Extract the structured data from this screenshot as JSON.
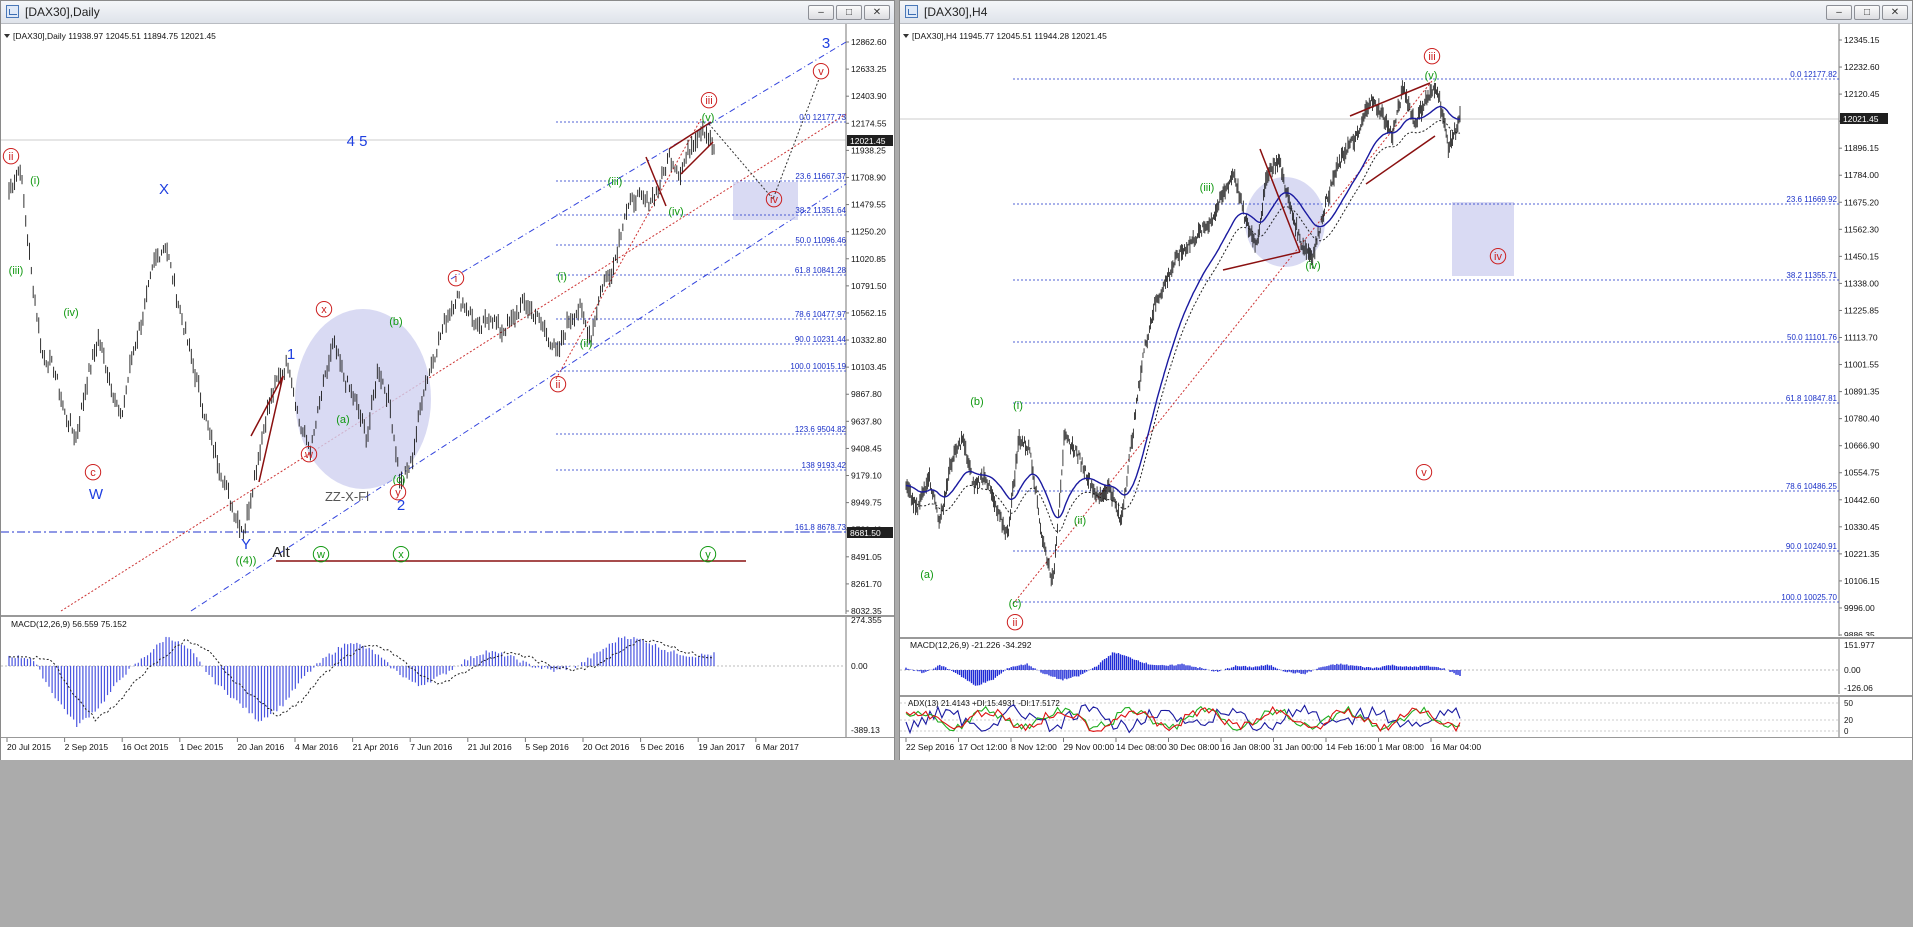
{
  "windows": [
    {
      "title": "[DAX30],Daily",
      "header": "[DAX30],Daily  11938.97 12045.51 11894.75 12021.45",
      "current_price": "12021.45",
      "y_ticks": [
        "12862.60",
        "12633.25",
        "12403.90",
        "12174.55",
        "11938.25",
        "11708.90",
        "11479.55",
        "11250.20",
        "11020.85",
        "10791.50",
        "10562.15",
        "10332.80",
        "10103.45",
        "9867.80",
        "9637.80",
        "9408.45",
        "9179.10",
        "8949.75",
        "8720.40",
        "8491.05",
        "8261.70",
        "8032.35"
      ],
      "current_marker_low": "8681.50",
      "x_ticks": [
        "20 Jul 2015",
        "2 Sep 2015",
        "16 Oct 2015",
        "1 Dec 2015",
        "20 Jan 2016",
        "4 Mar 2016",
        "21 Apr 2016",
        "7 Jun 2016",
        "21 Jul 2016",
        "5 Sep 2016",
        "20 Oct 2016",
        "5 Dec 2016",
        "19 Jan 2017",
        "6 Mar 2017"
      ],
      "fib_levels": [
        "0.0 12177.73",
        "23.6 11667.37",
        "38.2 11351.64",
        "50.0 11096.46",
        "61.8 10841.28",
        "78.6 10477.97",
        "90.0 10231.44",
        "100.0 10015.19",
        "123.6 9504.82",
        "138 9193.42",
        "161.8 8678.73"
      ],
      "wave_labels": [
        "ii",
        "i",
        "iii",
        "iv",
        "c",
        "W",
        "X",
        "Y",
        "(4)",
        "1",
        "x",
        "w",
        "a",
        "b",
        "c",
        "y",
        "2",
        "i",
        "ii",
        "i",
        "ii",
        "iii",
        "iv",
        "v",
        "iii",
        "iv",
        "v",
        "3",
        "4 5",
        "ZZ-X-Fl",
        "Alt",
        "w",
        "x",
        "y"
      ],
      "macd_label": "MACD(12,26,9) 56.559 75.152",
      "macd_ticks": [
        "274.355",
        "0.00",
        "-389.13"
      ]
    },
    {
      "title": "[DAX30],H4",
      "header": "[DAX30],H4  11945.77 12045.51 11944.28 12021.45",
      "current_price": "12021.45",
      "y_ticks": [
        "12345.15",
        "12232.60",
        "12120.45",
        "12008.30",
        "11896.15",
        "11784.00",
        "11675.20",
        "11562.30",
        "11450.15",
        "11338.00",
        "11225.85",
        "11113.70",
        "11001.55",
        "10891.35",
        "10780.40",
        "10666.90",
        "10554.75",
        "10442.60",
        "10330.45",
        "10221.35",
        "10106.15",
        "9996.00",
        "9886.35"
      ],
      "x_ticks": [
        "22 Sep 2016",
        "17 Oct 12:00",
        "8 Nov 12:00",
        "29 Nov 00:00",
        "14 Dec 08:00",
        "30 Dec 08:00",
        "16 Jan 08:00",
        "31 Jan 00:00",
        "14 Feb 16:00",
        "1 Mar 08:00",
        "16 Mar 04:00"
      ],
      "fib_levels": [
        "0.0 12177.82",
        "23.6 11669.92",
        "38.2 11355.71",
        "50.0 11101.76",
        "61.8 10847.81",
        "78.6 10486.25",
        "90.0 10240.91",
        "100.0 10025.70"
      ],
      "wave_labels": [
        "a",
        "b",
        "c",
        "ii",
        "i",
        "ii",
        "iii",
        "iv",
        "v",
        "iii",
        "iv",
        "v"
      ],
      "macd_label": "MACD(12,26,9) -21.226 -34.292",
      "macd_ticks": [
        "151.977",
        "0.00",
        "-126.06"
      ],
      "adx_label": "ADX(13) 21.4143 +DI:15.4931 -DI:17.5172",
      "adx_ticks": [
        "50",
        "20",
        "0"
      ]
    }
  ],
  "colors": {
    "wave_red": "#cc1f1f",
    "wave_green": "#119911",
    "wave_blue": "#1f3fe0",
    "fib": "#1a30c8",
    "zone": "#cfd1f0",
    "trend": "#8a1010"
  },
  "chart_data": [
    {
      "type": "line",
      "title": "[DAX30],Daily",
      "x": [
        "20 Jul 2015",
        "2 Sep 2015",
        "16 Oct 2015",
        "1 Dec 2015",
        "20 Jan 2016",
        "4 Mar 2016",
        "21 Apr 2016",
        "7 Jun 2016",
        "21 Jul 2016",
        "5 Sep 2016",
        "20 Oct 2016",
        "5 Dec 2016",
        "19 Jan 2017",
        "6 Mar 2017"
      ],
      "series": [
        {
          "values": [
            11600,
            10100,
            9900,
            11100,
            9600,
            9500,
            10200,
            9600,
            10150,
            10600,
            10500,
            10900,
            11550,
            11950
          ]
        }
      ],
      "ylim": [
        8032.35,
        12862.6
      ]
    },
    {
      "type": "line",
      "title": "[DAX30],H4",
      "x": [
        "22 Sep 2016",
        "17 Oct 12:00",
        "8 Nov 12:00",
        "29 Nov 00:00",
        "14 Dec 08:00",
        "30 Dec 08:00",
        "16 Jan 08:00",
        "31 Jan 00:00",
        "14 Feb 16:00",
        "1 Mar 08:00",
        "16 Mar 04:00"
      ],
      "series": [
        {
          "values": [
            10500,
            10650,
            10100,
            10450,
            11200,
            11500,
            11550,
            11450,
            11800,
            12000,
            12021
          ]
        }
      ],
      "ylim": [
        9886.35,
        12345.15
      ]
    }
  ]
}
